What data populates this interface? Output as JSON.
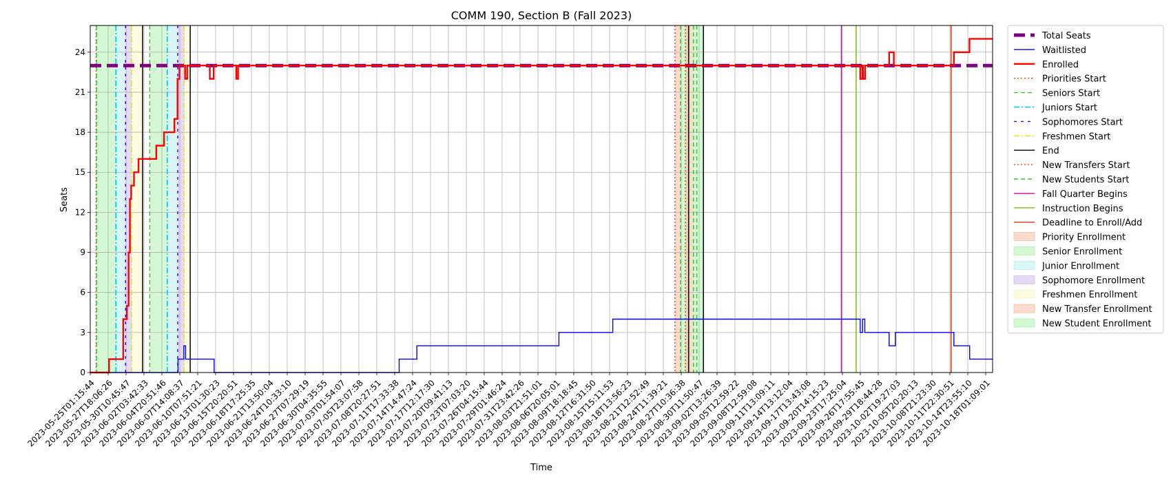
{
  "chart_data": {
    "type": "line",
    "title": "COMM 190, Section B (Fall 2023)",
    "xlabel": "Time",
    "ylabel": "Seats",
    "ylim": [
      0,
      26
    ],
    "xlim": [
      "2023-05-25T01:15:44",
      "2023-10-19T18:00:00"
    ],
    "yticks": [
      0,
      3,
      6,
      9,
      12,
      15,
      18,
      21,
      24
    ],
    "grid": true,
    "legend_position": "outside-right",
    "xtick_labels": [
      "2023-05-25T01:15:44",
      "2023-05-27T18:06:26",
      "2023-05-30T10:45:47",
      "2023-06-02T03:42:33",
      "2023-06-04T20:51:46",
      "2023-06-07T14:08:37",
      "2023-06-10T07:51:21",
      "2023-06-13T01:30:23",
      "2023-06-15T20:20:51",
      "2023-06-18T17:25:35",
      "2023-06-21T13:50:04",
      "2023-06-24T10:33:10",
      "2023-06-27T07:29:19",
      "2023-06-30T04:35:55",
      "2023-07-03T01:54:07",
      "2023-07-05T23:07:58",
      "2023-07-08T20:27:51",
      "2023-07-11T17:33:38",
      "2023-07-14T14:47:24",
      "2023-07-17T12:17:30",
      "2023-07-20T09:41:13",
      "2023-07-23T07:03:20",
      "2023-07-26T04:15:44",
      "2023-07-29T01:46:24",
      "2023-07-31T23:42:26",
      "2023-08-03T21:51:01",
      "2023-08-06T20:05:01",
      "2023-08-09T18:18:45",
      "2023-08-12T16:31:50",
      "2023-08-15T15:11:53",
      "2023-08-18T13:56:23",
      "2023-08-21T12:52:49",
      "2023-08-24T11:39:21",
      "2023-08-27T10:36:38",
      "2023-08-30T11:50:47",
      "2023-09-02T13:26:39",
      "2023-09-05T12:59:22",
      "2023-09-08T12:59:08",
      "2023-09-11T13:09:11",
      "2023-09-14T13:12:04",
      "2023-09-17T13:43:08",
      "2023-09-20T14:15:23",
      "2023-09-23T17:25:04",
      "2023-09-26T17:55:45",
      "2023-09-29T18:44:28",
      "2023-10-02T19:27:03",
      "2023-10-05T20:20:13",
      "2023-10-08T21:23:30",
      "2023-10-11T22:30:51",
      "2023-10-14T23:55:10",
      "2023-10-18T01:09:01"
    ],
    "series": [
      {
        "name": "Total Seats",
        "color": "#800080",
        "style": "dashed-thick",
        "points": [
          [
            "2023-05-25T01:15:44",
            23
          ],
          [
            "2023-10-19T18:00:00",
            23
          ]
        ]
      },
      {
        "name": "Waitlisted",
        "color": "#0000ff",
        "style": "solid",
        "points": [
          [
            "2023-05-25T01:15:44",
            0
          ],
          [
            "2023-06-08T10:00:00",
            0
          ],
          [
            "2023-06-08T10:00:00",
            1
          ],
          [
            "2023-06-09T09:00:00",
            1
          ],
          [
            "2023-06-09T09:00:00",
            2
          ],
          [
            "2023-06-09T16:00:00",
            2
          ],
          [
            "2023-06-09T16:00:00",
            1
          ],
          [
            "2023-06-14T08:00:00",
            1
          ],
          [
            "2023-06-14T08:00:00",
            0
          ],
          [
            "2023-07-14T14:47:24",
            0
          ],
          [
            "2023-07-14T14:47:24",
            1
          ],
          [
            "2023-07-17T12:17:30",
            1
          ],
          [
            "2023-07-17T12:17:30",
            2
          ],
          [
            "2023-08-09T18:18:45",
            2
          ],
          [
            "2023-08-09T18:18:45",
            3
          ],
          [
            "2023-08-18T13:56:23",
            3
          ],
          [
            "2023-08-18T13:56:23",
            4
          ],
          [
            "2023-09-28T02:00:00",
            4
          ],
          [
            "2023-09-28T02:00:00",
            3
          ],
          [
            "2023-09-28T11:00:00",
            3
          ],
          [
            "2023-09-28T11:00:00",
            4
          ],
          [
            "2023-09-28T20:00:00",
            4
          ],
          [
            "2023-09-28T20:00:00",
            3
          ],
          [
            "2023-10-02T19:27:03",
            3
          ],
          [
            "2023-10-02T19:27:03",
            2
          ],
          [
            "2023-10-03T20:00:00",
            2
          ],
          [
            "2023-10-03T20:00:00",
            3
          ],
          [
            "2023-10-13T10:00:00",
            3
          ],
          [
            "2023-10-13T10:00:00",
            2
          ],
          [
            "2023-10-16T00:00:00",
            2
          ],
          [
            "2023-10-16T00:00:00",
            1
          ],
          [
            "2023-10-19T18:00:00",
            1
          ]
        ]
      },
      {
        "name": "Enrolled",
        "color": "#ff0000",
        "style": "solid-thick",
        "points": [
          [
            "2023-05-25T01:15:44",
            0
          ],
          [
            "2023-05-28T03:00:00",
            0
          ],
          [
            "2023-05-28T03:00:00",
            1
          ],
          [
            "2023-05-30T10:45:47",
            1
          ],
          [
            "2023-05-30T10:45:47",
            4
          ],
          [
            "2023-05-31T01:00:00",
            4
          ],
          [
            "2023-05-31T01:00:00",
            5
          ],
          [
            "2023-05-31T08:00:00",
            5
          ],
          [
            "2023-05-31T08:00:00",
            9
          ],
          [
            "2023-05-31T13:00:00",
            9
          ],
          [
            "2023-05-31T13:00:00",
            13
          ],
          [
            "2023-05-31T18:00:00",
            13
          ],
          [
            "2023-05-31T18:00:00",
            14
          ],
          [
            "2023-06-01T05:00:00",
            14
          ],
          [
            "2023-06-01T05:00:00",
            15
          ],
          [
            "2023-06-01T23:00:00",
            15
          ],
          [
            "2023-06-01T23:00:00",
            16
          ],
          [
            "2023-06-04T20:51:46",
            16
          ],
          [
            "2023-06-04T20:51:46",
            17
          ],
          [
            "2023-06-06T03:00:00",
            17
          ],
          [
            "2023-06-06T03:00:00",
            18
          ],
          [
            "2023-06-07T20:00:00",
            18
          ],
          [
            "2023-06-07T20:00:00",
            19
          ],
          [
            "2023-06-08T08:00:00",
            19
          ],
          [
            "2023-06-08T08:00:00",
            22
          ],
          [
            "2023-06-08T16:00:00",
            22
          ],
          [
            "2023-06-08T16:00:00",
            23
          ],
          [
            "2023-06-09T14:00:00",
            23
          ],
          [
            "2023-06-09T14:00:00",
            22
          ],
          [
            "2023-06-09T22:00:00",
            22
          ],
          [
            "2023-06-09T22:00:00",
            23
          ],
          [
            "2023-06-13T15:00:00",
            23
          ],
          [
            "2023-06-13T15:00:00",
            22
          ],
          [
            "2023-06-14T06:00:00",
            22
          ],
          [
            "2023-06-14T06:00:00",
            23
          ],
          [
            "2023-06-17T23:00:00",
            23
          ],
          [
            "2023-06-17T23:00:00",
            22
          ],
          [
            "2023-06-18T06:00:00",
            22
          ],
          [
            "2023-06-18T06:00:00",
            23
          ],
          [
            "2023-09-28T02:00:00",
            23
          ],
          [
            "2023-09-28T02:00:00",
            22
          ],
          [
            "2023-09-28T10:00:00",
            22
          ],
          [
            "2023-09-28T10:00:00",
            23
          ],
          [
            "2023-09-28T13:00:00",
            23
          ],
          [
            "2023-09-28T13:00:00",
            22
          ],
          [
            "2023-09-28T21:00:00",
            22
          ],
          [
            "2023-09-28T21:00:00",
            23
          ],
          [
            "2023-10-02T19:27:03",
            23
          ],
          [
            "2023-10-02T19:27:03",
            24
          ],
          [
            "2023-10-03T14:00:00",
            24
          ],
          [
            "2023-10-03T14:00:00",
            23
          ],
          [
            "2023-10-13T10:00:00",
            23
          ],
          [
            "2023-10-13T10:00:00",
            24
          ],
          [
            "2023-10-15T23:00:00",
            24
          ],
          [
            "2023-10-15T23:00:00",
            25
          ],
          [
            "2023-10-19T18:00:00",
            25
          ]
        ]
      }
    ],
    "vertical_lines": [
      {
        "name": "Priorities Start",
        "color": "#ff4500",
        "style": "dotted",
        "x": [
          "2023-05-26T00:00:00",
          "2023-08-28T18:00:00"
        ]
      },
      {
        "name": "Seniors Start",
        "color": "#32cd32",
        "style": "dashed",
        "x": [
          "2023-05-26T02:00:00",
          "2023-06-03T19:00:00",
          "2023-08-29T16:00:00",
          "2023-08-31T19:00:00"
        ]
      },
      {
        "name": "Juniors Start",
        "color": "#00bfff",
        "style": "dashdot",
        "x": [
          "2023-05-29T06:00:00",
          "2023-06-06T16:00:00"
        ]
      },
      {
        "name": "Sophomores Start",
        "color": "#4b00e0",
        "style": "dashed-fine",
        "x": [
          "2023-05-30T20:00:00",
          "2023-06-08T09:00:00"
        ]
      },
      {
        "name": "Freshmen Start",
        "color": "#e6e600",
        "style": "dashdot",
        "x": [
          "2023-05-31T20:00:00",
          "2023-06-09T10:00:00"
        ]
      },
      {
        "name": "End",
        "color": "#000000",
        "style": "solid",
        "x": [
          "2023-06-02T15:00:00",
          "2023-06-10T10:00:00",
          "2023-08-31T00:00:00",
          "2023-09-02T10:00:00"
        ]
      },
      {
        "name": "New Transfers Start",
        "color": "#ff4500",
        "style": "dotted",
        "x": [
          "2023-08-30T11:00:00"
        ]
      },
      {
        "name": "New Students Start",
        "color": "#32cd32",
        "style": "dashed",
        "x": [
          "2023-09-01T08:00:00"
        ]
      },
      {
        "name": "Fall Quarter Begins",
        "color": "#d4009e",
        "style": "solid",
        "x": [
          "2023-09-25T00:00:00"
        ]
      },
      {
        "name": "Instruction Begins",
        "color": "#7fbf00",
        "style": "solid",
        "x": [
          "2023-09-27T10:00:00"
        ]
      },
      {
        "name": "Deadline to Enroll/Add",
        "color": "#d83a14",
        "style": "solid",
        "x": [
          "2023-10-12T23:00:00"
        ]
      }
    ],
    "shaded_regions": [
      {
        "name": "Priority Enrollment",
        "color": "#f4a582",
        "from": "2023-05-26T00:00:00",
        "to": "2023-05-26T02:00:00"
      },
      {
        "name": "Senior Enrollment",
        "color": "#90ee90",
        "from": "2023-05-26T02:00:00",
        "to": "2023-05-29T06:00:00"
      },
      {
        "name": "Junior Enrollment",
        "color": "#9fe7ec",
        "from": "2023-05-29T06:00:00",
        "to": "2023-05-30T20:00:00"
      },
      {
        "name": "Sophomore Enrollment",
        "color": "#b9a3e3",
        "from": "2023-05-30T20:00:00",
        "to": "2023-05-31T20:00:00"
      },
      {
        "name": "Freshmen Enrollment",
        "color": "#f7f4b2",
        "from": "2023-05-31T20:00:00",
        "to": "2023-06-02T15:00:00"
      },
      {
        "name": "Senior Enrollment",
        "color": "#90ee90",
        "from": "2023-06-03T19:00:00",
        "to": "2023-06-06T16:00:00"
      },
      {
        "name": "Junior Enrollment",
        "color": "#9fe7ec",
        "from": "2023-06-06T16:00:00",
        "to": "2023-06-08T09:00:00"
      },
      {
        "name": "Sophomore Enrollment",
        "color": "#b9a3e3",
        "from": "2023-06-08T09:00:00",
        "to": "2023-06-09T10:00:00"
      },
      {
        "name": "Freshmen Enrollment",
        "color": "#f7f4b2",
        "from": "2023-06-09T10:00:00",
        "to": "2023-06-10T10:00:00"
      },
      {
        "name": "Priority Enrollment",
        "color": "#f4a582",
        "from": "2023-08-28T18:00:00",
        "to": "2023-08-29T16:00:00"
      },
      {
        "name": "Senior Enrollment",
        "color": "#90ee90",
        "from": "2023-08-29T16:00:00",
        "to": "2023-08-31T00:00:00"
      },
      {
        "name": "New Transfer Enrollment",
        "color": "#f4a582",
        "from": "2023-08-30T11:00:00",
        "to": "2023-08-31T19:00:00"
      },
      {
        "name": "New Student Enrollment",
        "color": "#90ee90",
        "from": "2023-08-31T19:00:00",
        "to": "2023-09-02T10:00:00"
      }
    ],
    "legend": [
      {
        "label": "Total Seats",
        "kind": "line",
        "color": "#800080",
        "style": "dashed-thick"
      },
      {
        "label": "Waitlisted",
        "kind": "line",
        "color": "#0000ff",
        "style": "solid"
      },
      {
        "label": "Enrolled",
        "kind": "line",
        "color": "#ff0000",
        "style": "solid-thick"
      },
      {
        "label": "Priorities Start",
        "kind": "line",
        "color": "#ff4500",
        "style": "dotted"
      },
      {
        "label": "Seniors Start",
        "kind": "line",
        "color": "#32cd32",
        "style": "dashed"
      },
      {
        "label": "Juniors Start",
        "kind": "line",
        "color": "#00bfff",
        "style": "dashdot"
      },
      {
        "label": "Sophomores Start",
        "kind": "line",
        "color": "#4b00e0",
        "style": "dashed-fine"
      },
      {
        "label": "Freshmen Start",
        "kind": "line",
        "color": "#e6e600",
        "style": "dashdot"
      },
      {
        "label": "End",
        "kind": "line",
        "color": "#000000",
        "style": "solid"
      },
      {
        "label": "New Transfers Start",
        "kind": "line",
        "color": "#ff4500",
        "style": "dotted"
      },
      {
        "label": "New Students Start",
        "kind": "line",
        "color": "#32cd32",
        "style": "dashed"
      },
      {
        "label": "Fall Quarter Begins",
        "kind": "line",
        "color": "#d4009e",
        "style": "solid"
      },
      {
        "label": "Instruction Begins",
        "kind": "line",
        "color": "#7fbf00",
        "style": "solid"
      },
      {
        "label": "Deadline to Enroll/Add",
        "kind": "line",
        "color": "#d83a14",
        "style": "solid"
      },
      {
        "label": "Priority Enrollment",
        "kind": "patch",
        "color": "#f4a582"
      },
      {
        "label": "Senior Enrollment",
        "kind": "patch",
        "color": "#90ee90"
      },
      {
        "label": "Junior Enrollment",
        "kind": "patch",
        "color": "#9fe7ec"
      },
      {
        "label": "Sophomore Enrollment",
        "kind": "patch",
        "color": "#b9a3e3"
      },
      {
        "label": "Freshmen Enrollment",
        "kind": "patch",
        "color": "#f7f4b2"
      },
      {
        "label": "New Transfer Enrollment",
        "kind": "patch",
        "color": "#f4a582"
      },
      {
        "label": "New Student Enrollment",
        "kind": "patch",
        "color": "#90ee90"
      }
    ]
  }
}
